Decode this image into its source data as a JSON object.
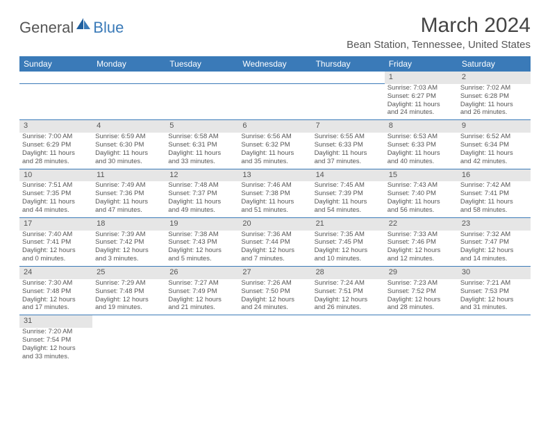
{
  "logo": {
    "text1": "General",
    "text2": "Blue",
    "sail_color": "#1f5f9e"
  },
  "title": "March 2024",
  "location": "Bean Station, Tennessee, United States",
  "header_bg": "#3a7ab8",
  "header_text_color": "#ffffff",
  "daynum_bg": "#e6e6e6",
  "border_color": "#3a7ab8",
  "text_color": "#555555",
  "background_color": "#ffffff",
  "day_headers": [
    "Sunday",
    "Monday",
    "Tuesday",
    "Wednesday",
    "Thursday",
    "Friday",
    "Saturday"
  ],
  "weeks": [
    [
      null,
      null,
      null,
      null,
      null,
      {
        "n": "1",
        "sr": "Sunrise: 7:03 AM",
        "ss": "Sunset: 6:27 PM",
        "d1": "Daylight: 11 hours",
        "d2": "and 24 minutes."
      },
      {
        "n": "2",
        "sr": "Sunrise: 7:02 AM",
        "ss": "Sunset: 6:28 PM",
        "d1": "Daylight: 11 hours",
        "d2": "and 26 minutes."
      }
    ],
    [
      {
        "n": "3",
        "sr": "Sunrise: 7:00 AM",
        "ss": "Sunset: 6:29 PM",
        "d1": "Daylight: 11 hours",
        "d2": "and 28 minutes."
      },
      {
        "n": "4",
        "sr": "Sunrise: 6:59 AM",
        "ss": "Sunset: 6:30 PM",
        "d1": "Daylight: 11 hours",
        "d2": "and 30 minutes."
      },
      {
        "n": "5",
        "sr": "Sunrise: 6:58 AM",
        "ss": "Sunset: 6:31 PM",
        "d1": "Daylight: 11 hours",
        "d2": "and 33 minutes."
      },
      {
        "n": "6",
        "sr": "Sunrise: 6:56 AM",
        "ss": "Sunset: 6:32 PM",
        "d1": "Daylight: 11 hours",
        "d2": "and 35 minutes."
      },
      {
        "n": "7",
        "sr": "Sunrise: 6:55 AM",
        "ss": "Sunset: 6:33 PM",
        "d1": "Daylight: 11 hours",
        "d2": "and 37 minutes."
      },
      {
        "n": "8",
        "sr": "Sunrise: 6:53 AM",
        "ss": "Sunset: 6:33 PM",
        "d1": "Daylight: 11 hours",
        "d2": "and 40 minutes."
      },
      {
        "n": "9",
        "sr": "Sunrise: 6:52 AM",
        "ss": "Sunset: 6:34 PM",
        "d1": "Daylight: 11 hours",
        "d2": "and 42 minutes."
      }
    ],
    [
      {
        "n": "10",
        "sr": "Sunrise: 7:51 AM",
        "ss": "Sunset: 7:35 PM",
        "d1": "Daylight: 11 hours",
        "d2": "and 44 minutes."
      },
      {
        "n": "11",
        "sr": "Sunrise: 7:49 AM",
        "ss": "Sunset: 7:36 PM",
        "d1": "Daylight: 11 hours",
        "d2": "and 47 minutes."
      },
      {
        "n": "12",
        "sr": "Sunrise: 7:48 AM",
        "ss": "Sunset: 7:37 PM",
        "d1": "Daylight: 11 hours",
        "d2": "and 49 minutes."
      },
      {
        "n": "13",
        "sr": "Sunrise: 7:46 AM",
        "ss": "Sunset: 7:38 PM",
        "d1": "Daylight: 11 hours",
        "d2": "and 51 minutes."
      },
      {
        "n": "14",
        "sr": "Sunrise: 7:45 AM",
        "ss": "Sunset: 7:39 PM",
        "d1": "Daylight: 11 hours",
        "d2": "and 54 minutes."
      },
      {
        "n": "15",
        "sr": "Sunrise: 7:43 AM",
        "ss": "Sunset: 7:40 PM",
        "d1": "Daylight: 11 hours",
        "d2": "and 56 minutes."
      },
      {
        "n": "16",
        "sr": "Sunrise: 7:42 AM",
        "ss": "Sunset: 7:41 PM",
        "d1": "Daylight: 11 hours",
        "d2": "and 58 minutes."
      }
    ],
    [
      {
        "n": "17",
        "sr": "Sunrise: 7:40 AM",
        "ss": "Sunset: 7:41 PM",
        "d1": "Daylight: 12 hours",
        "d2": "and 0 minutes."
      },
      {
        "n": "18",
        "sr": "Sunrise: 7:39 AM",
        "ss": "Sunset: 7:42 PM",
        "d1": "Daylight: 12 hours",
        "d2": "and 3 minutes."
      },
      {
        "n": "19",
        "sr": "Sunrise: 7:38 AM",
        "ss": "Sunset: 7:43 PM",
        "d1": "Daylight: 12 hours",
        "d2": "and 5 minutes."
      },
      {
        "n": "20",
        "sr": "Sunrise: 7:36 AM",
        "ss": "Sunset: 7:44 PM",
        "d1": "Daylight: 12 hours",
        "d2": "and 7 minutes."
      },
      {
        "n": "21",
        "sr": "Sunrise: 7:35 AM",
        "ss": "Sunset: 7:45 PM",
        "d1": "Daylight: 12 hours",
        "d2": "and 10 minutes."
      },
      {
        "n": "22",
        "sr": "Sunrise: 7:33 AM",
        "ss": "Sunset: 7:46 PM",
        "d1": "Daylight: 12 hours",
        "d2": "and 12 minutes."
      },
      {
        "n": "23",
        "sr": "Sunrise: 7:32 AM",
        "ss": "Sunset: 7:47 PM",
        "d1": "Daylight: 12 hours",
        "d2": "and 14 minutes."
      }
    ],
    [
      {
        "n": "24",
        "sr": "Sunrise: 7:30 AM",
        "ss": "Sunset: 7:48 PM",
        "d1": "Daylight: 12 hours",
        "d2": "and 17 minutes."
      },
      {
        "n": "25",
        "sr": "Sunrise: 7:29 AM",
        "ss": "Sunset: 7:48 PM",
        "d1": "Daylight: 12 hours",
        "d2": "and 19 minutes."
      },
      {
        "n": "26",
        "sr": "Sunrise: 7:27 AM",
        "ss": "Sunset: 7:49 PM",
        "d1": "Daylight: 12 hours",
        "d2": "and 21 minutes."
      },
      {
        "n": "27",
        "sr": "Sunrise: 7:26 AM",
        "ss": "Sunset: 7:50 PM",
        "d1": "Daylight: 12 hours",
        "d2": "and 24 minutes."
      },
      {
        "n": "28",
        "sr": "Sunrise: 7:24 AM",
        "ss": "Sunset: 7:51 PM",
        "d1": "Daylight: 12 hours",
        "d2": "and 26 minutes."
      },
      {
        "n": "29",
        "sr": "Sunrise: 7:23 AM",
        "ss": "Sunset: 7:52 PM",
        "d1": "Daylight: 12 hours",
        "d2": "and 28 minutes."
      },
      {
        "n": "30",
        "sr": "Sunrise: 7:21 AM",
        "ss": "Sunset: 7:53 PM",
        "d1": "Daylight: 12 hours",
        "d2": "and 31 minutes."
      }
    ],
    [
      {
        "n": "31",
        "sr": "Sunrise: 7:20 AM",
        "ss": "Sunset: 7:54 PM",
        "d1": "Daylight: 12 hours",
        "d2": "and 33 minutes."
      },
      null,
      null,
      null,
      null,
      null,
      null
    ]
  ]
}
